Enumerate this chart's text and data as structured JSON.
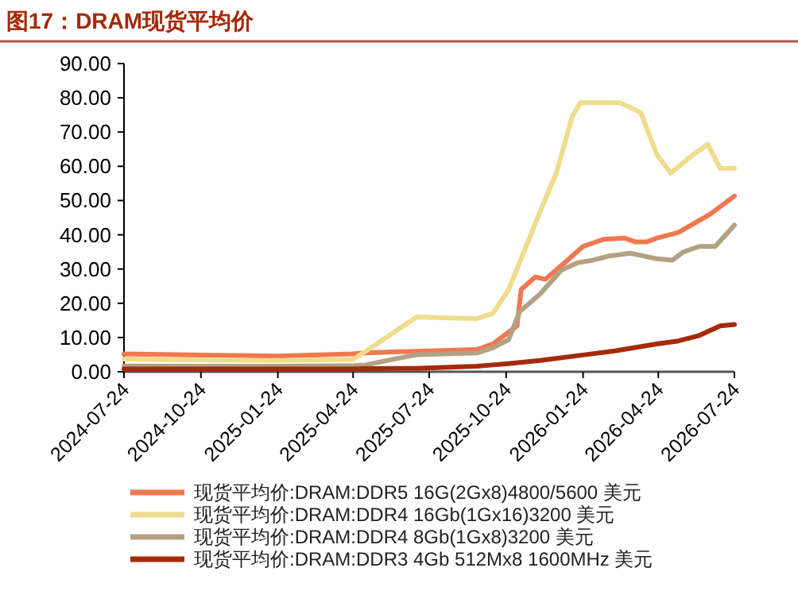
{
  "chart_data": {
    "type": "line",
    "title": "图17：DRAM现货平均价",
    "x": [
      "2024-07-24",
      "2024-10-24",
      "2025-01-24",
      "2025-04-24",
      "2025-05-09",
      "2025-07-09",
      "2025-09-19",
      "2025-10-08",
      "2025-10-27",
      "2025-11-06",
      "2025-11-09",
      "2025-11-11",
      "2025-11-28",
      "2025-12-04",
      "2025-12-10",
      "2025-12-23",
      "2025-12-29",
      "2026-01-11",
      "2026-01-17",
      "2026-01-21",
      "2026-01-24",
      "2026-02-05",
      "2026-02-18",
      "2026-02-24",
      "2026-03-03",
      "2026-03-09",
      "2026-03-15",
      "2026-03-22",
      "2026-03-28",
      "2026-04-03",
      "2026-04-10",
      "2026-04-22",
      "2026-05-09",
      "2026-05-11",
      "2026-05-18",
      "2026-05-24",
      "2026-05-30",
      "2026-06-12",
      "2026-06-22",
      "2026-06-25",
      "2026-07-01",
      "2026-07-07",
      "2026-07-24"
    ],
    "series": [
      {
        "name": "现货平均价:DRAM:DDR5 16G(2Gx8)4800/5600 美元",
        "color": "#f07850",
        "values": [
          5.2,
          4.9,
          4.6,
          5.2,
          5.5,
          6,
          6.5,
          8.1,
          null,
          13.4,
          null,
          24,
          27.7,
          null,
          27,
          null,
          31,
          null,
          null,
          null,
          36.6,
          null,
          38.7,
          null,
          null,
          null,
          39,
          null,
          37.9,
          null,
          37.9,
          39,
          null,
          null,
          40.7,
          null,
          null,
          null,
          null,
          46,
          null,
          null,
          51.3
        ]
      },
      {
        "name": "现货平均价:DRAM:DDR4 16Gb(1Gx16)3200 美元",
        "color": "#f0dc8c",
        "values": [
          3.7,
          3.4,
          3.3,
          3.6,
          6,
          16,
          15.5,
          17,
          24,
          null,
          null,
          null,
          null,
          47,
          null,
          58,
          null,
          74.5,
          null,
          78.6,
          null,
          null,
          null,
          null,
          null,
          78.6,
          null,
          null,
          null,
          75.7,
          null,
          63.5,
          58,
          null,
          null,
          null,
          62.3,
          null,
          66.4,
          null,
          null,
          59.4,
          59.4
        ]
      },
      {
        "name": "现货平均价:DRAM:DDR4 8Gb(1Gx8)3200 美元",
        "color": "#b4a082",
        "values": [
          1.7,
          1.6,
          1.6,
          1.8,
          2,
          5,
          5.5,
          7,
          9.4,
          null,
          17.5,
          null,
          null,
          22.8,
          null,
          null,
          29.7,
          null,
          31.8,
          null,
          null,
          32.6,
          null,
          33.8,
          null,
          null,
          null,
          34.6,
          null,
          null,
          null,
          33,
          null,
          32.6,
          null,
          35,
          null,
          36.6,
          null,
          null,
          36.6,
          null,
          42.8
        ]
      },
      {
        "name": "现货平均价:DRAM:DDR3 4Gb 512Mx8 1600MHz 美元",
        "color": "#a52a0a",
        "values": [
          0.8,
          0.8,
          0.8,
          0.8,
          0.9,
          1,
          1.6,
          2,
          2.4,
          null,
          null,
          null,
          null,
          3.3,
          null,
          null,
          null,
          null,
          null,
          null,
          4.9,
          null,
          null,
          null,
          6.1,
          null,
          null,
          null,
          null,
          null,
          null,
          8.1,
          null,
          null,
          9,
          null,
          null,
          10.6,
          null,
          null,
          null,
          13.4,
          13.8
        ]
      }
    ],
    "xlim": [
      "2024-07-24",
      "2026-07-24"
    ],
    "xticks": [
      "2024-07-24",
      "2024-10-24",
      "2025-01-24",
      "2025-04-24",
      "2025-07-24",
      "2025-10-24",
      "2026-01-24",
      "2026-04-24",
      "2026-07-24"
    ],
    "ylim": [
      0,
      90
    ],
    "yticks": [
      {
        "value": 0,
        "label": "0.00"
      },
      {
        "value": 10,
        "label": "10.00"
      },
      {
        "value": 20,
        "label": "20.00"
      },
      {
        "value": 30,
        "label": "30.00"
      },
      {
        "value": 40,
        "label": "40.00"
      },
      {
        "value": 50,
        "label": "50.00"
      },
      {
        "value": 60,
        "label": "60.00"
      },
      {
        "value": 70,
        "label": "70.00"
      },
      {
        "value": 80,
        "label": "80.00"
      },
      {
        "value": 90,
        "label": "90.00"
      }
    ],
    "grid": false,
    "legend": "bottom",
    "line_style": "solid"
  }
}
